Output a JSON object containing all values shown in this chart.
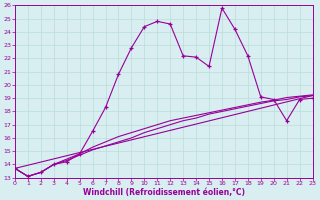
{
  "xlabel": "Windchill (Refroidissement éolien,°C)",
  "xlim": [
    0,
    23
  ],
  "ylim": [
    13,
    26
  ],
  "yticks": [
    13,
    14,
    15,
    16,
    17,
    18,
    19,
    20,
    21,
    22,
    23,
    24,
    25,
    26
  ],
  "xticks": [
    0,
    1,
    2,
    3,
    4,
    5,
    6,
    7,
    8,
    9,
    10,
    11,
    12,
    13,
    14,
    15,
    16,
    17,
    18,
    19,
    20,
    21,
    22,
    23
  ],
  "line_color": "#990099",
  "background_color": "#d8eef0",
  "grid_color": "#b8ddd8",
  "line1_x": [
    0,
    1,
    2,
    3,
    4,
    5,
    6,
    7,
    8,
    9,
    10,
    11,
    12,
    13,
    14,
    15,
    16,
    17,
    18,
    19,
    20,
    21,
    22,
    23
  ],
  "line1_y": [
    13.7,
    13.1,
    13.4,
    14.0,
    14.2,
    14.8,
    16.5,
    18.3,
    20.8,
    22.8,
    24.4,
    24.8,
    24.6,
    22.2,
    22.1,
    21.4,
    25.8,
    24.2,
    22.2,
    19.1,
    18.9,
    17.3,
    18.9,
    19.0
  ],
  "line2_x": [
    0,
    1,
    2,
    3,
    4,
    5,
    6,
    7,
    8,
    9,
    10,
    11,
    12,
    13,
    14,
    15,
    16,
    17,
    18,
    19,
    20,
    21,
    22,
    23
  ],
  "line2_y": [
    13.7,
    13.1,
    13.4,
    14.0,
    14.3,
    14.7,
    15.1,
    15.4,
    15.7,
    16.0,
    16.4,
    16.7,
    17.0,
    17.3,
    17.5,
    17.8,
    18.0,
    18.2,
    18.4,
    18.6,
    18.8,
    18.9,
    19.1,
    19.2
  ],
  "line3_x": [
    0,
    1,
    2,
    3,
    4,
    5,
    6,
    7,
    8,
    9,
    10,
    11,
    12,
    13,
    14,
    15,
    16,
    17,
    18,
    19,
    20,
    21,
    22,
    23
  ],
  "line3_y": [
    13.7,
    13.1,
    13.4,
    14.0,
    14.4,
    14.8,
    15.3,
    15.7,
    16.1,
    16.4,
    16.7,
    17.0,
    17.3,
    17.5,
    17.7,
    17.9,
    18.1,
    18.3,
    18.5,
    18.7,
    18.85,
    19.05,
    19.15,
    19.25
  ],
  "line4_x": [
    0,
    23
  ],
  "line4_y": [
    13.7,
    19.2
  ]
}
